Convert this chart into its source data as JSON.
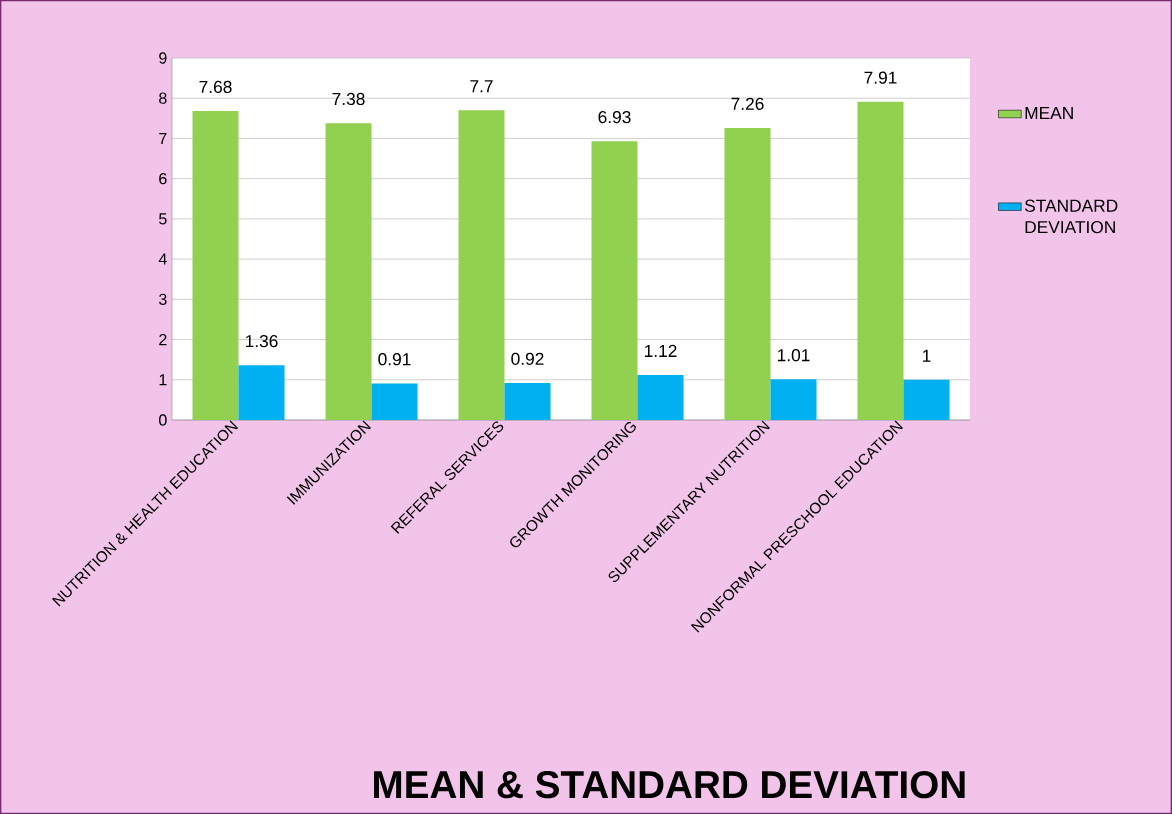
{
  "chart_data": {
    "type": "bar",
    "title": "MEAN & STANDARD DEVIATION",
    "categories": [
      "NUTRITION & HEALTH EDUCATION",
      "IMMUNIZATION",
      "REFERAL SERVICES",
      "GROWTH MONITORING",
      "SUPPLEMENTARY NUTRITION",
      "NONFORMAL PRESCHOOL EDUCATION"
    ],
    "series": [
      {
        "name": "MEAN",
        "color": "#92d050",
        "values": [
          7.68,
          7.38,
          7.7,
          6.93,
          7.26,
          7.91
        ]
      },
      {
        "name": "STANDARD DEVIATION",
        "color": "#00b0f0",
        "values": [
          1.36,
          0.91,
          0.92,
          1.12,
          1.01,
          1
        ]
      }
    ],
    "ylim": [
      0,
      9
    ],
    "yticks": [
      0,
      1,
      2,
      3,
      4,
      5,
      6,
      7,
      8,
      9
    ],
    "grid": "y",
    "legend": "right",
    "data_labels": true
  }
}
